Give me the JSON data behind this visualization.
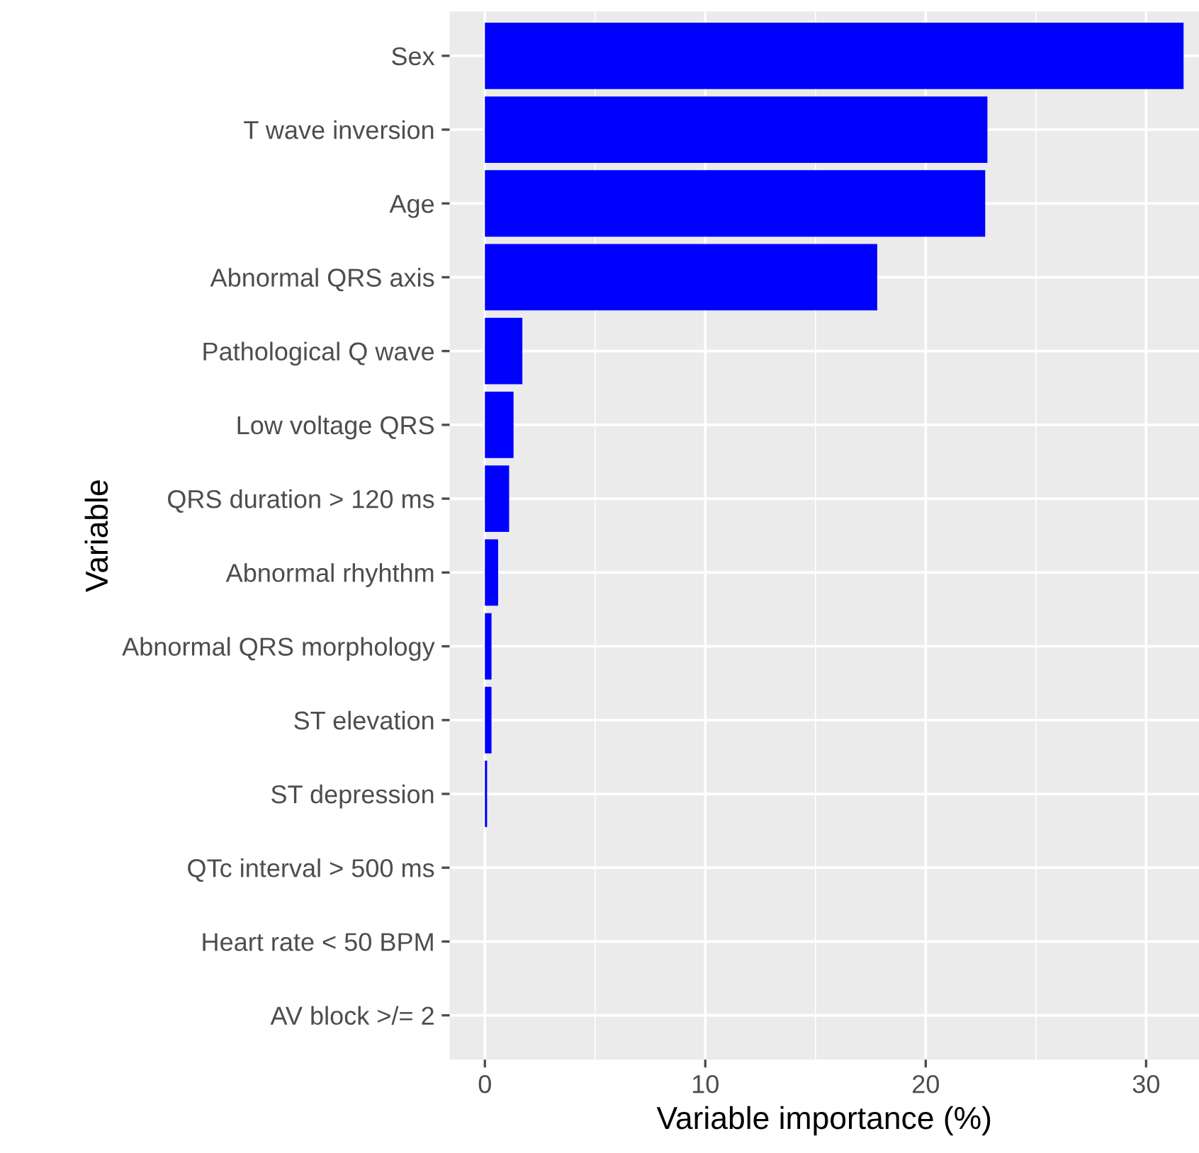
{
  "chart_data": {
    "type": "bar",
    "orientation": "horizontal",
    "xlabel": "Variable importance (%)",
    "ylabel": "Variable",
    "categories": [
      "Sex",
      "T wave inversion",
      "Age",
      "Abnormal QRS axis",
      "Pathological Q wave",
      "Low voltage QRS",
      "QRS duration > 120 ms",
      "Abnormal rhyhthm",
      "Abnormal QRS morphology",
      "ST elevation",
      "ST depression",
      "QTc interval > 500 ms",
      "Heart rate < 50 BPM",
      "AV block >/= 2"
    ],
    "values": [
      31.7,
      22.8,
      22.7,
      17.8,
      1.7,
      1.3,
      1.1,
      0.6,
      0.3,
      0.3,
      0.1,
      0,
      0,
      0
    ],
    "color": "#0000ff",
    "xlim": [
      -1.6,
      32.4
    ],
    "xticks": [
      0,
      10,
      20,
      30
    ],
    "grid": true
  }
}
